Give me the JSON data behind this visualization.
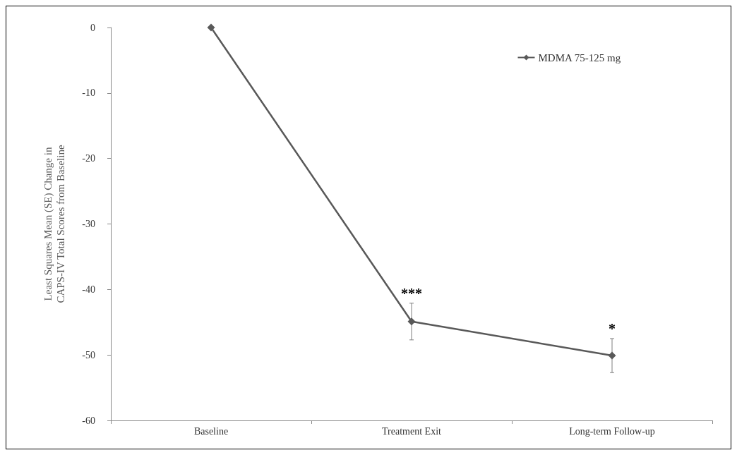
{
  "chart_data": {
    "type": "line",
    "ylabel": "Least Squares Mean (SE) Change in\nCAPS-IV Total Scores from Baseline",
    "categories": [
      "Baseline",
      "Treatment Exit",
      "Long-term Follow-up"
    ],
    "series": [
      {
        "name": "MDMA 75-125 mg",
        "color": "#595959",
        "values": [
          0,
          -44.9,
          -50.1
        ],
        "errors": [
          null,
          2.8,
          2.6
        ]
      }
    ],
    "ylim": [
      -60,
      0
    ],
    "yticks": [
      -60,
      -50,
      -40,
      -30,
      -20,
      -10,
      0
    ],
    "annotations": [
      "***",
      "*"
    ],
    "grid": false,
    "legend": "top right",
    "marker": "diamond",
    "line_style": "solid"
  }
}
